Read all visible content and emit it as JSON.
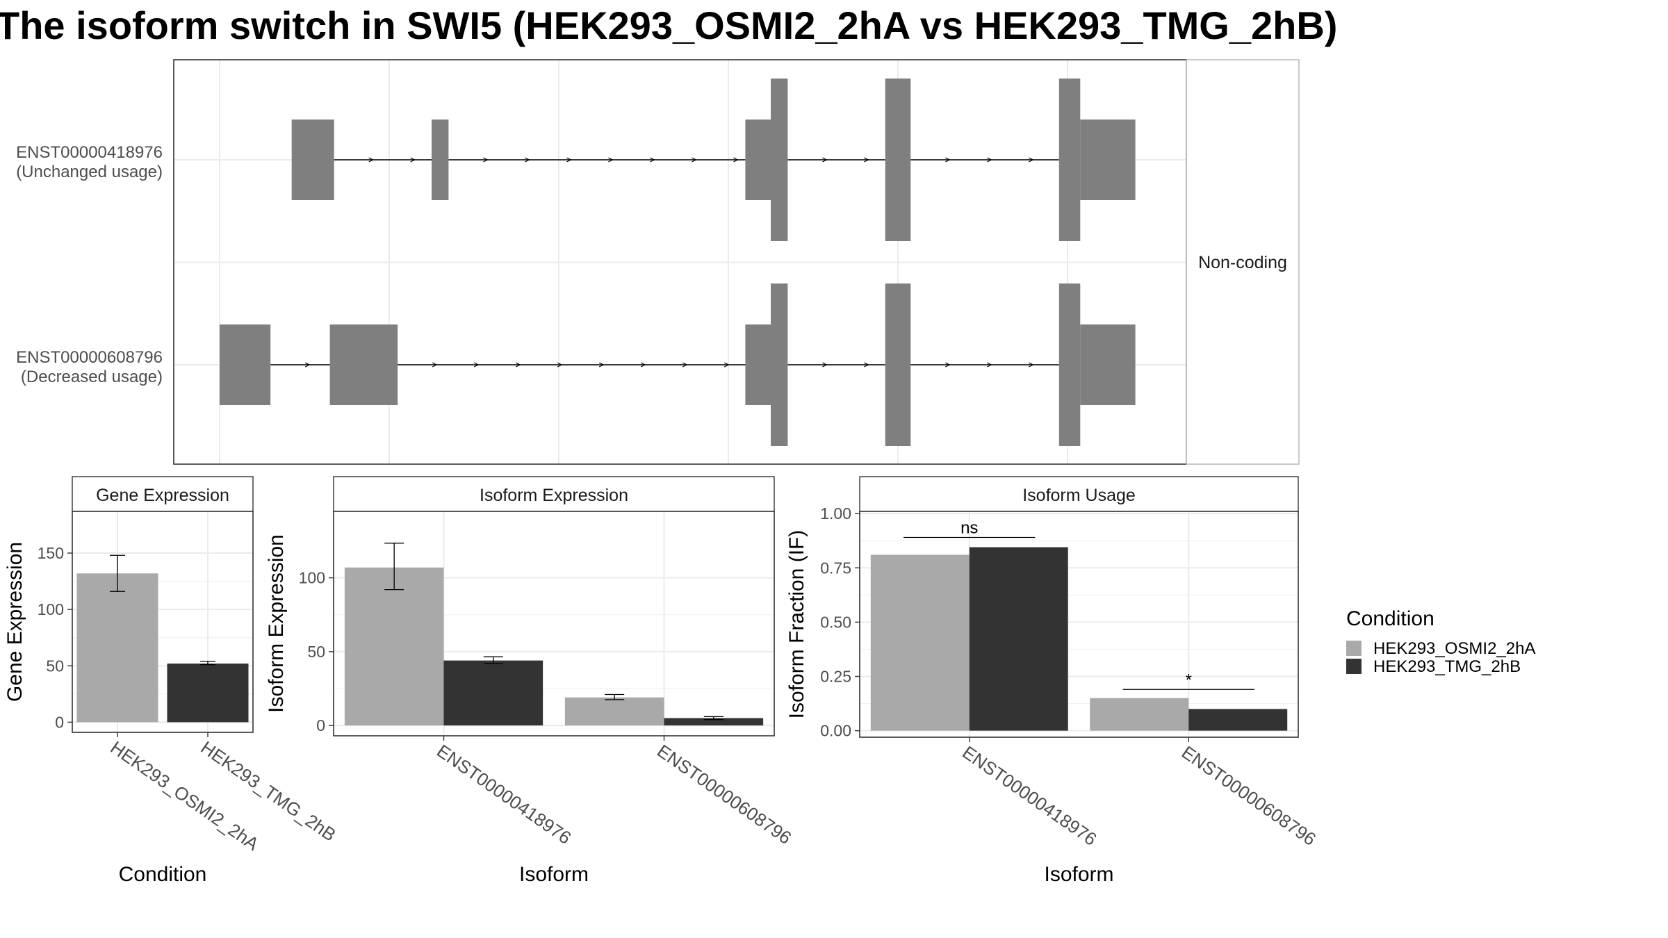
{
  "title": "The isoform switch in SWI5 (HEK293_OSMI2_2hA vs HEK293_TMG_2hB)",
  "colors": {
    "cond_a": "#a9a9a9",
    "cond_b": "#333333",
    "exon": "#7f7f7f",
    "grid": "#ebebeb",
    "panel_border": "#333333",
    "text": "#000000",
    "axis_text": "#4d4d4d"
  },
  "chart_data": [
    {
      "type": "isoform_structure",
      "facet_label": "Non-coding",
      "isoforms": [
        {
          "id": "ENST00000418976",
          "usage_label": "(Unchanged usage)",
          "exons": [
            {
              "start": 0.085,
              "end": 0.135,
              "kind": "utr"
            },
            {
              "start": 0.25,
              "end": 0.27,
              "kind": "utr"
            },
            {
              "start": 0.62,
              "end": 0.65,
              "kind": "utr"
            },
            {
              "start": 0.65,
              "end": 0.67,
              "kind": "cds"
            },
            {
              "start": 0.785,
              "end": 0.815,
              "kind": "cds"
            },
            {
              "start": 0.99,
              "end": 1.015,
              "kind": "cds"
            },
            {
              "start": 1.015,
              "end": 1.08,
              "kind": "utr"
            }
          ]
        },
        {
          "id": "ENST00000608796",
          "usage_label": "(Decreased usage)",
          "exons": [
            {
              "start": 0.0,
              "end": 0.06,
              "kind": "utr"
            },
            {
              "start": 0.13,
              "end": 0.21,
              "kind": "utr"
            },
            {
              "start": 0.62,
              "end": 0.65,
              "kind": "utr"
            },
            {
              "start": 0.65,
              "end": 0.67,
              "kind": "cds"
            },
            {
              "start": 0.785,
              "end": 0.815,
              "kind": "cds"
            },
            {
              "start": 0.99,
              "end": 1.015,
              "kind": "cds"
            },
            {
              "start": 1.015,
              "end": 1.08,
              "kind": "utr"
            }
          ]
        }
      ]
    },
    {
      "type": "bar",
      "facet_label": "Gene Expression",
      "xlabel": "Condition",
      "ylabel": "Gene Expression",
      "categories": [
        "HEK293_OSMI2_2hA",
        "HEK293_TMG_2hB"
      ],
      "values": [
        132,
        52
      ],
      "error_low": [
        116,
        51
      ],
      "error_high": [
        148,
        54
      ],
      "yticks": [
        0,
        50,
        100,
        150
      ],
      "ylim": [
        -9,
        187
      ]
    },
    {
      "type": "bar",
      "facet_label": "Isoform Expression",
      "xlabel": "Isoform",
      "ylabel": "Isoform Expression",
      "categories": [
        "ENST00000418976",
        "ENST00000608796"
      ],
      "series": [
        {
          "name": "HEK293_OSMI2_2hA",
          "values": [
            107,
            19
          ],
          "error_low": [
            92,
            17.5
          ],
          "error_high": [
            123.5,
            21
          ]
        },
        {
          "name": "HEK293_TMG_2hB",
          "values": [
            44,
            5
          ],
          "error_low": [
            42,
            4
          ],
          "error_high": [
            46.5,
            6
          ]
        }
      ],
      "yticks": [
        0,
        50,
        100
      ],
      "ylim": [
        -7,
        145
      ]
    },
    {
      "type": "bar",
      "facet_label": "Isoform Usage",
      "xlabel": "Isoform",
      "ylabel": "Isoform Fraction (IF)",
      "categories": [
        "ENST00000418976",
        "ENST00000608796"
      ],
      "series": [
        {
          "name": "HEK293_OSMI2_2hA",
          "values": [
            0.81,
            0.15
          ]
        },
        {
          "name": "HEK293_TMG_2hB",
          "values": [
            0.845,
            0.1
          ]
        }
      ],
      "significance": [
        {
          "category": "ENST00000418976",
          "label": "ns",
          "level": 0.89
        },
        {
          "category": "ENST00000608796",
          "label": "*",
          "level": 0.19
        }
      ],
      "yticks": [
        "0.00",
        "0.25",
        "0.50",
        "0.75",
        "1.00"
      ],
      "ylim": [
        -0.03,
        1.01
      ]
    }
  ],
  "legend": {
    "title": "Condition",
    "items": [
      "HEK293_OSMI2_2hA",
      "HEK293_TMG_2hB"
    ]
  }
}
